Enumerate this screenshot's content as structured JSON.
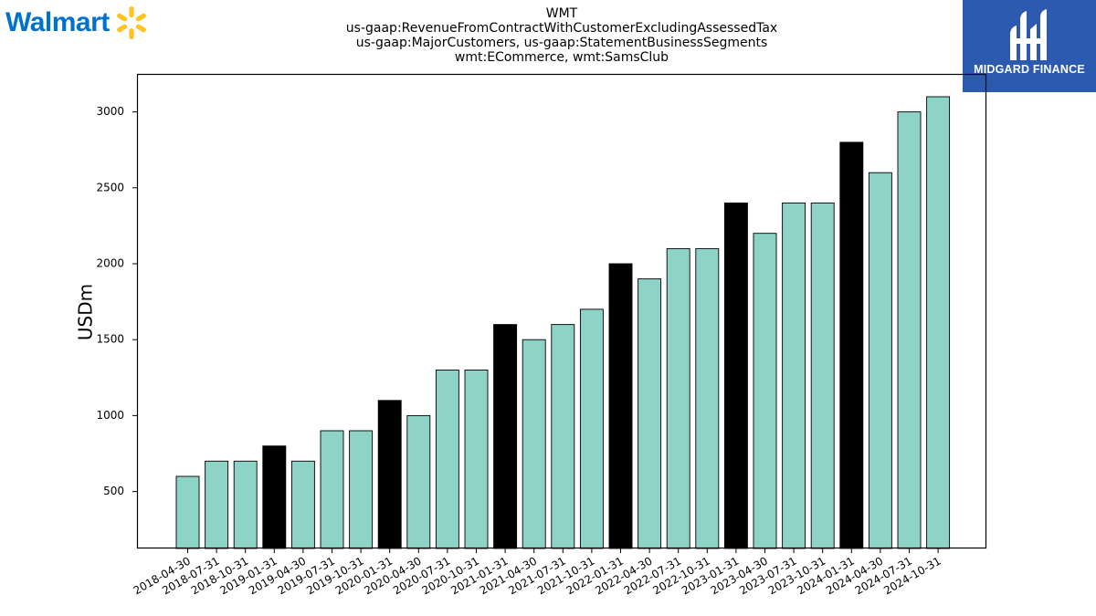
{
  "logos": {
    "left_brand": "Walmart",
    "right_brand": "MIDGARD FINANCE"
  },
  "chart_data": {
    "type": "bar",
    "title": "WMT",
    "subtitle_lines": [
      "us-gaap:RevenueFromContractWithCustomerExcludingAssessedTax",
      "us-gaap:MajorCustomers, us-gaap:StatementBusinessSegments",
      "wmt:ECommerce, wmt:SamsClub"
    ],
    "xlabel": "",
    "ylabel": "USDm",
    "ylim": [
      125,
      3250
    ],
    "yticks": [
      500,
      1000,
      1500,
      2000,
      2500,
      3000
    ],
    "grid": false,
    "colors": {
      "quarter": "#8dd3c7",
      "fiscal_year_end": "#000000",
      "edge": "#000000"
    },
    "categories": [
      "2018-04-30",
      "2018-07-31",
      "2018-10-31",
      "2019-01-31",
      "2019-04-30",
      "2019-07-31",
      "2019-10-31",
      "2020-01-31",
      "2020-04-30",
      "2020-07-31",
      "2020-10-31",
      "2021-01-31",
      "2021-04-30",
      "2021-07-31",
      "2021-10-31",
      "2022-01-31",
      "2022-04-30",
      "2022-07-31",
      "2022-10-31",
      "2023-01-31",
      "2023-04-30",
      "2023-07-31",
      "2023-10-31",
      "2024-01-31",
      "2024-04-30",
      "2024-07-31",
      "2024-10-31"
    ],
    "values": [
      600,
      700,
      700,
      800,
      700,
      900,
      900,
      1100,
      1000,
      1300,
      1300,
      1600,
      1500,
      1600,
      1700,
      2000,
      1900,
      2100,
      2100,
      2400,
      2200,
      2400,
      2400,
      2800,
      2600,
      3000,
      3100
    ],
    "highlight": [
      false,
      false,
      false,
      true,
      false,
      false,
      false,
      true,
      false,
      false,
      false,
      true,
      false,
      false,
      false,
      true,
      false,
      false,
      false,
      true,
      false,
      false,
      false,
      true,
      false,
      false,
      false
    ]
  }
}
